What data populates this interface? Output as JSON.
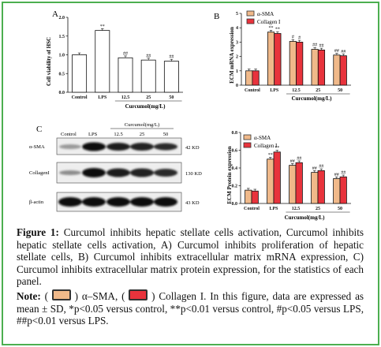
{
  "colors": {
    "border": "#4CAF50",
    "sma": "#F0B98A",
    "collagen": "#E8333C",
    "bar_white": "#ffffff"
  },
  "panelA": {
    "letter": "A",
    "ylabel": "Cell viability of HSC",
    "xgroup": "Curcumol(mg/L)",
    "chart_data": {
      "type": "bar",
      "categories": [
        "Control",
        "LPS",
        "12.5",
        "25",
        "50"
      ],
      "values": [
        1.0,
        1.65,
        0.92,
        0.86,
        0.83
      ],
      "sig": [
        "",
        "**",
        "##",
        "##",
        "##"
      ],
      "yticks": [
        "0.0",
        "0.5",
        "1.0",
        "1.5",
        "2.0"
      ],
      "ylim": [
        0,
        2.0
      ]
    }
  },
  "panelB": {
    "letter": "B",
    "ylabel": "ECM mRNA expression",
    "xgroup": "Curcumol(mg/L)",
    "legend": [
      "α-SMA",
      "Collagen I"
    ],
    "chart_data": {
      "type": "bar",
      "categories": [
        "Control",
        "LPS",
        "12.5",
        "25",
        "50"
      ],
      "series": [
        {
          "name": "α-SMA",
          "values": [
            1.0,
            3.7,
            3.05,
            2.5,
            2.1
          ],
          "sig": [
            "",
            "**",
            "#",
            "##",
            "##"
          ]
        },
        {
          "name": "Collagen I",
          "values": [
            1.0,
            3.6,
            3.0,
            2.45,
            2.05
          ],
          "sig": [
            "",
            "**",
            "#",
            "##",
            "##"
          ]
        }
      ],
      "yticks": [
        "0",
        "1",
        "2",
        "3",
        "4",
        "5"
      ],
      "ylim": [
        0,
        5
      ]
    }
  },
  "panelC": {
    "letter": "C",
    "header": {
      "control": "Control",
      "lps": "LPS",
      "curcumol": "Curcumol(mg/L)",
      "d1": "12.5",
      "d2": "25",
      "d3": "50"
    },
    "rows": [
      {
        "label": "α-SMA",
        "kd": "42 KD"
      },
      {
        "label": "CollagenI",
        "kd": "130 KD"
      },
      {
        "label": "β-actin",
        "kd": "43 KD"
      }
    ]
  },
  "panelD": {
    "ylabel": "ECM Protein expression",
    "xgroup": "Curcumol(mg/L)",
    "legend": [
      "α-SMA",
      "Collagen I"
    ],
    "chart_data": {
      "type": "bar",
      "categories": [
        "Control",
        "LPS",
        "12.5",
        "25",
        "50"
      ],
      "series": [
        {
          "name": "α-SMA",
          "values": [
            0.15,
            0.5,
            0.43,
            0.35,
            0.28
          ],
          "sig": [
            "",
            "**",
            "##",
            "##",
            "##"
          ]
        },
        {
          "name": "Collagen I",
          "values": [
            0.14,
            0.58,
            0.46,
            0.37,
            0.3
          ],
          "sig": [
            "",
            "**",
            "##",
            "##",
            "##"
          ]
        }
      ],
      "yticks": [
        "0.0",
        "0.2",
        "0.4",
        "0.6",
        "0.8"
      ],
      "ylim": [
        0,
        0.8
      ]
    }
  },
  "caption": {
    "figure_label": "Figure 1:",
    "figure_text": "Curcumol inhibits hepatic stellate cells activation, Curcumol inhibits hepatic stellate cells activation, A) Curcumol inhibits proliferation of hepatic stellate cells, B) Curcumol inhibits extracellular matrix mRNA expression, C) Curcumol inhibits extracellular matrix protein expression, for the statistics of each panel.",
    "note_label": "Note:",
    "note_open1": "(",
    "note_sma": ") α–SMA, (",
    "note_col": ") Collagen I. In this figure, data are expressed as mean ± SD, *p<0.05 versus control, **p<0.01 versus control, #p<0.05 versus LPS, ##p<0.01 versus LPS."
  }
}
